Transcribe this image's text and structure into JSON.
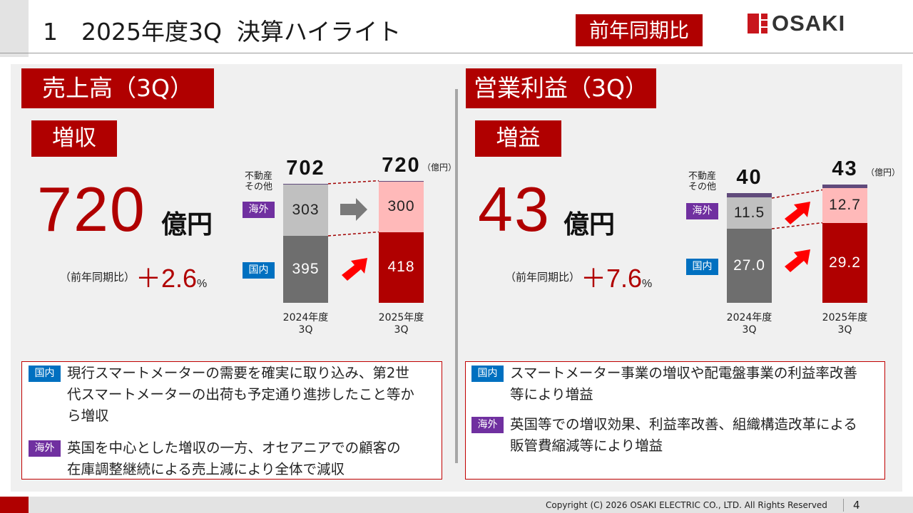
{
  "header": {
    "title": "1　2025年度3Q  決算ハイライト",
    "badge": "前年同期比",
    "logo": "OSAKI"
  },
  "colors": {
    "accent": "#b00000",
    "overseas": "#7030a0",
    "domestic": "#0070c0",
    "prev_overseas": "#c0c0c0",
    "prev_domestic": "#6e6e6e",
    "cur_overseas": "#ffb9b9",
    "cur_domestic": "#b00000",
    "other": "#604a7b"
  },
  "sales": {
    "section": "売上高（3Q）",
    "tag": "増収",
    "value": "720",
    "unit": "億円",
    "yoy_label": "（前年同期比）",
    "yoy_value": "＋2.6",
    "yoy_unit": "%",
    "chart": {
      "other_label": [
        "不動産",
        "その他"
      ],
      "overseas_label": "海外",
      "domestic_label": "国内",
      "unit": "（億円）",
      "bars": [
        {
          "label": [
            "2024年度",
            "3Q"
          ],
          "total": 702,
          "overseas": 303,
          "domestic": 395
        },
        {
          "label": [
            "2025年度",
            "3Q"
          ],
          "total": 720,
          "overseas": 300,
          "domestic": 418
        }
      ],
      "arrows": {
        "overseas": "flat-gray",
        "domestic": "up-red"
      }
    },
    "notes": [
      {
        "tag": "国内",
        "lines": [
          "現行スマートメーターの需要を確実に取り込み、第2世",
          "代スマートメーターの出荷も予定通り進捗したこと等か",
          "ら増収"
        ]
      },
      {
        "tag": "海外",
        "lines": [
          "英国を中心とした増収の一方、オセアニアでの顧客の",
          "在庫調整継続による売上減により全体で減収"
        ]
      }
    ]
  },
  "op": {
    "section": "営業利益（3Q）",
    "tag": "増益",
    "value": "43",
    "unit": "億円",
    "yoy_label": "（前年同期比）",
    "yoy_value": "＋7.6",
    "yoy_unit": "%",
    "chart": {
      "other_label": [
        "不動産",
        "その他"
      ],
      "overseas_label": "海外",
      "domestic_label": "国内",
      "unit": "（億円）",
      "bars": [
        {
          "label": [
            "2024年度",
            "3Q"
          ],
          "total": 40,
          "overseas": "11.5",
          "domestic": "27.0"
        },
        {
          "label": [
            "2025年度",
            "3Q"
          ],
          "total": 43,
          "overseas": "12.7",
          "domestic": "29.2"
        }
      ],
      "arrows": {
        "overseas": "up-red",
        "domestic": "up-red"
      }
    },
    "notes": [
      {
        "tag": "国内",
        "lines": [
          "スマートメーター事業の増収や配電盤事業の利益率改善",
          "等により増益"
        ]
      },
      {
        "tag": "海外",
        "lines": [
          "英国等での増収効果、利益率改善、組織構造改革による",
          "販管費縮減等により増益"
        ]
      }
    ]
  },
  "footer": {
    "copyright": "Copyright (C) 2026 OSAKI ELECTRIC CO., LTD. All Rights Reserved",
    "page": "4"
  }
}
